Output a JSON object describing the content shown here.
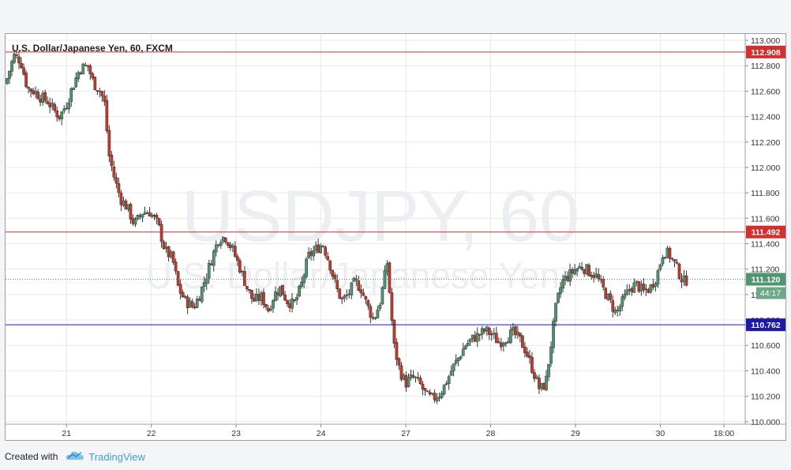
{
  "chart_data": {
    "type": "candlestick",
    "title": "U.S. Dollar/Japanese Yen, 60, FXCM",
    "watermark": {
      "line1": "USDJPY, 60",
      "line2": "U.S. Dollar/Japanese Yen"
    },
    "ylim": [
      109.98,
      113.05
    ],
    "xlim": [
      0,
      8.18
    ],
    "y_ticks": [
      "113.000",
      "112.800",
      "112.600",
      "112.400",
      "112.200",
      "112.000",
      "111.800",
      "111.600",
      "111.400",
      "111.200",
      "111.000",
      "110.800",
      "110.600",
      "110.400",
      "110.200",
      "110.000"
    ],
    "x_ticks": [
      {
        "label": "21",
        "x": 0.7
      },
      {
        "label": "22",
        "x": 1.7
      },
      {
        "label": "23",
        "x": 2.7
      },
      {
        "label": "24",
        "x": 3.7
      },
      {
        "label": "27",
        "x": 4.7
      },
      {
        "label": "28",
        "x": 5.7
      },
      {
        "label": "29",
        "x": 6.7
      },
      {
        "label": "30",
        "x": 7.7
      },
      {
        "label": "18:00",
        "x": 8.45
      }
    ],
    "horizontal_lines": [
      {
        "value": 112.908,
        "label": "112.908",
        "color": "#d32f2f"
      },
      {
        "value": 111.492,
        "label": "111.492",
        "color": "#d32f2f"
      },
      {
        "value": 110.762,
        "label": "110.762",
        "color": "#1a1aa8"
      }
    ],
    "last_price": {
      "value": 111.12,
      "label": "111.120",
      "countdown": "44:17",
      "color": "#4f9473"
    },
    "up_color": "#4f9473",
    "down_color": "#c0392b",
    "anchors": [
      [
        0.0,
        112.7,
        0.2
      ],
      [
        0.08,
        112.88,
        0.06
      ],
      [
        0.16,
        112.84,
        0.06
      ],
      [
        0.24,
        112.62,
        0.06
      ],
      [
        0.32,
        112.6,
        0.06
      ],
      [
        0.4,
        112.55,
        0.06
      ],
      [
        0.48,
        112.52,
        0.06
      ],
      [
        0.55,
        112.45,
        0.06
      ],
      [
        0.62,
        112.4,
        0.1
      ],
      [
        0.7,
        112.5,
        0.06
      ],
      [
        0.78,
        112.65,
        0.06
      ],
      [
        0.86,
        112.78,
        0.06
      ],
      [
        0.95,
        112.8,
        0.06
      ],
      [
        1.02,
        112.66,
        0.06
      ],
      [
        1.1,
        112.6,
        0.06
      ],
      [
        1.15,
        112.5,
        0.06
      ],
      [
        1.2,
        112.1,
        0.06
      ],
      [
        1.27,
        111.9,
        0.06
      ],
      [
        1.34,
        111.75,
        0.06
      ],
      [
        1.42,
        111.68,
        0.06
      ],
      [
        1.5,
        111.55,
        0.1
      ],
      [
        1.6,
        111.65,
        0.06
      ],
      [
        1.68,
        111.65,
        0.06
      ],
      [
        1.78,
        111.55,
        0.06
      ],
      [
        1.86,
        111.35,
        0.06
      ],
      [
        1.95,
        111.28,
        0.06
      ],
      [
        2.02,
        111.05,
        0.06
      ],
      [
        2.1,
        110.95,
        0.15
      ],
      [
        2.2,
        110.9,
        0.1
      ],
      [
        2.27,
        111.0,
        0.06
      ],
      [
        2.35,
        111.15,
        0.06
      ],
      [
        2.42,
        111.3,
        0.06
      ],
      [
        2.5,
        111.45,
        0.06
      ],
      [
        2.58,
        111.45,
        0.06
      ],
      [
        2.66,
        111.35,
        0.06
      ],
      [
        2.75,
        111.2,
        0.06
      ],
      [
        2.83,
        111.05,
        0.06
      ],
      [
        2.9,
        110.95,
        0.06
      ],
      [
        3.0,
        110.98,
        0.06
      ],
      [
        3.08,
        110.88,
        0.1
      ],
      [
        3.15,
        111.0,
        0.06
      ],
      [
        3.22,
        111.05,
        0.06
      ],
      [
        3.3,
        110.95,
        0.06
      ],
      [
        3.38,
        110.92,
        0.06
      ],
      [
        3.46,
        111.05,
        0.06
      ],
      [
        3.55,
        111.3,
        0.06
      ],
      [
        3.63,
        111.35,
        0.06
      ],
      [
        3.72,
        111.4,
        0.06
      ],
      [
        3.8,
        111.25,
        0.06
      ],
      [
        3.88,
        111.05,
        0.06
      ],
      [
        3.95,
        110.95,
        0.06
      ],
      [
        4.02,
        111.0,
        0.06
      ],
      [
        4.1,
        111.1,
        0.06
      ],
      [
        4.17,
        111.05,
        0.06
      ],
      [
        4.24,
        110.92,
        0.06
      ],
      [
        4.32,
        110.8,
        0.06
      ],
      [
        4.4,
        110.95,
        0.15
      ],
      [
        4.48,
        111.25,
        0.06
      ],
      [
        4.56,
        110.6,
        0.06
      ],
      [
        4.63,
        110.4,
        0.06
      ],
      [
        4.7,
        110.3,
        0.06
      ],
      [
        4.78,
        110.35,
        0.06
      ],
      [
        4.86,
        110.3,
        0.06
      ],
      [
        4.95,
        110.2,
        0.06
      ],
      [
        5.02,
        110.18,
        0.06
      ],
      [
        5.1,
        110.22,
        0.06
      ],
      [
        5.17,
        110.3,
        0.06
      ],
      [
        5.25,
        110.42,
        0.06
      ],
      [
        5.32,
        110.5,
        0.06
      ],
      [
        5.4,
        110.6,
        0.06
      ],
      [
        5.48,
        110.65,
        0.06
      ],
      [
        5.56,
        110.68,
        0.06
      ],
      [
        5.64,
        110.72,
        0.06
      ],
      [
        5.72,
        110.68,
        0.06
      ],
      [
        5.8,
        110.62,
        0.06
      ],
      [
        5.88,
        110.66,
        0.06
      ],
      [
        5.96,
        110.7,
        0.06
      ],
      [
        6.04,
        110.65,
        0.06
      ],
      [
        6.12,
        110.55,
        0.06
      ],
      [
        6.2,
        110.4,
        0.06
      ],
      [
        6.28,
        110.25,
        0.06
      ],
      [
        6.35,
        110.3,
        0.06
      ],
      [
        6.4,
        110.55,
        0.06
      ],
      [
        6.47,
        110.9,
        0.06
      ],
      [
        6.54,
        111.1,
        0.06
      ],
      [
        6.62,
        111.15,
        0.06
      ],
      [
        6.7,
        111.2,
        0.06
      ],
      [
        6.78,
        111.22,
        0.06
      ],
      [
        6.86,
        111.18,
        0.06
      ],
      [
        6.94,
        111.15,
        0.06
      ],
      [
        7.02,
        111.05,
        0.06
      ],
      [
        7.1,
        110.95,
        0.06
      ],
      [
        7.18,
        110.85,
        0.06
      ],
      [
        7.26,
        110.95,
        0.06
      ],
      [
        7.34,
        111.05,
        0.06
      ],
      [
        7.42,
        111.08,
        0.06
      ],
      [
        7.5,
        111.02,
        0.06
      ],
      [
        7.58,
        111.05,
        0.06
      ],
      [
        7.66,
        111.15,
        0.06
      ],
      [
        7.74,
        111.35,
        0.06
      ],
      [
        7.82,
        111.3,
        0.06
      ],
      [
        7.9,
        111.2,
        0.06
      ],
      [
        7.97,
        111.1,
        0.06
      ],
      [
        8.02,
        111.12,
        0.06
      ]
    ]
  },
  "footer": {
    "created_with": "Created with",
    "brand": "TradingView"
  }
}
